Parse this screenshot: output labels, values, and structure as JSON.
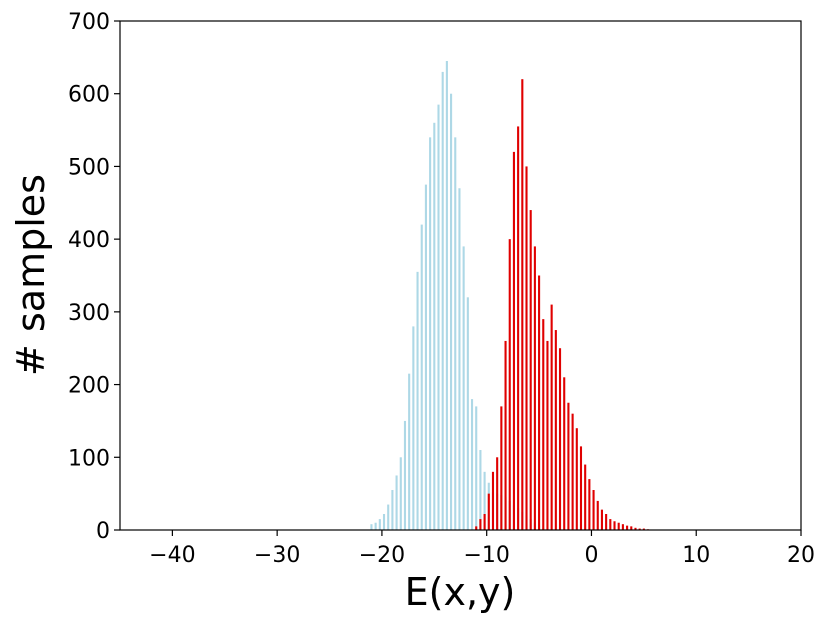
{
  "chart_data": {
    "type": "bar",
    "xlabel": "E(x,y)",
    "ylabel": "# samples",
    "xlim": [
      -45,
      20
    ],
    "ylim": [
      0,
      700
    ],
    "xticks": [
      -40,
      -30,
      -20,
      -10,
      0,
      10,
      20
    ],
    "yticks": [
      0,
      100,
      200,
      300,
      400,
      500,
      600,
      700
    ],
    "xtick_labels": [
      "−40",
      "−30",
      "−20",
      "−10",
      "0",
      "10",
      "20"
    ],
    "ytick_labels": [
      "0",
      "100",
      "200",
      "300",
      "400",
      "500",
      "600",
      "700"
    ],
    "grid": false,
    "bar_width": 0.2,
    "series": [
      {
        "color": "#add8e6",
        "x": [
          -21.0,
          -20.6,
          -20.2,
          -19.8,
          -19.4,
          -19.0,
          -18.6,
          -18.2,
          -17.8,
          -17.4,
          -17.0,
          -16.6,
          -16.2,
          -15.8,
          -15.4,
          -15.0,
          -14.6,
          -14.2,
          -13.8,
          -13.4,
          -13.0,
          -12.6,
          -12.2,
          -11.8,
          -11.4,
          -11.0,
          -10.6,
          -10.2,
          -9.8,
          -9.4,
          -9.0,
          -8.6,
          -8.2,
          -7.8,
          -7.4,
          -7.0,
          -6.6,
          -6.2,
          -5.8,
          -5.4,
          -5.0,
          -4.6
        ],
        "values": [
          8,
          10,
          15,
          22,
          35,
          55,
          75,
          100,
          150,
          215,
          280,
          355,
          420,
          475,
          540,
          560,
          585,
          630,
          645,
          600,
          540,
          470,
          390,
          320,
          180,
          170,
          110,
          80,
          65,
          52,
          50,
          48,
          45,
          40,
          35,
          30,
          25,
          20,
          15,
          10,
          6,
          3
        ]
      },
      {
        "color": "#e00000",
        "x": [
          -11.0,
          -10.6,
          -10.2,
          -9.8,
          -9.4,
          -9.0,
          -8.6,
          -8.2,
          -7.8,
          -7.4,
          -7.0,
          -6.6,
          -6.2,
          -5.8,
          -5.4,
          -5.0,
          -4.6,
          -4.2,
          -3.8,
          -3.4,
          -3.0,
          -2.6,
          -2.2,
          -1.8,
          -1.4,
          -1.0,
          -0.6,
          -0.2,
          0.2,
          0.6,
          1.0,
          1.4,
          1.8,
          2.2,
          2.6,
          3.0,
          3.4,
          3.8,
          4.2,
          4.6,
          5.0,
          5.4
        ],
        "values": [
          5,
          15,
          22,
          50,
          80,
          100,
          170,
          260,
          400,
          520,
          555,
          620,
          500,
          440,
          390,
          350,
          290,
          260,
          310,
          275,
          250,
          210,
          175,
          160,
          140,
          115,
          90,
          70,
          55,
          40,
          28,
          22,
          15,
          12,
          10,
          8,
          6,
          5,
          3,
          2,
          2,
          1
        ]
      }
    ]
  }
}
